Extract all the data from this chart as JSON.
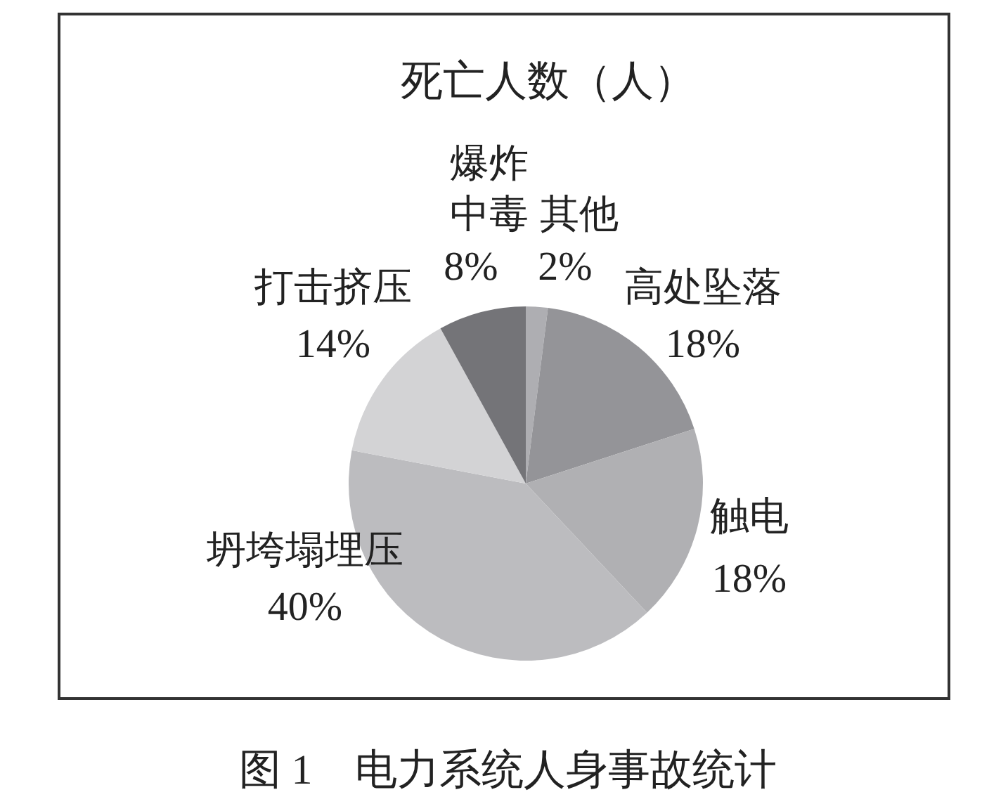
{
  "chart_data": {
    "type": "pie",
    "title": "死亡人数（人）",
    "categories": [
      "其他",
      "高处坠落",
      "触电",
      "坍垮塌埋压",
      "打击挤压",
      "爆炸中毒"
    ],
    "values": [
      2,
      18,
      18,
      40,
      14,
      8
    ],
    "colors": [
      "#aeaeb2",
      "#949498",
      "#b0b0b3",
      "#bcbcbf",
      "#d3d3d5",
      "#747478"
    ],
    "value_labels": [
      "2%",
      "18%",
      "18%",
      "40%",
      "14%",
      "8%"
    ],
    "annotations": [
      "图 1　电力系统人身事故统计"
    ]
  }
}
